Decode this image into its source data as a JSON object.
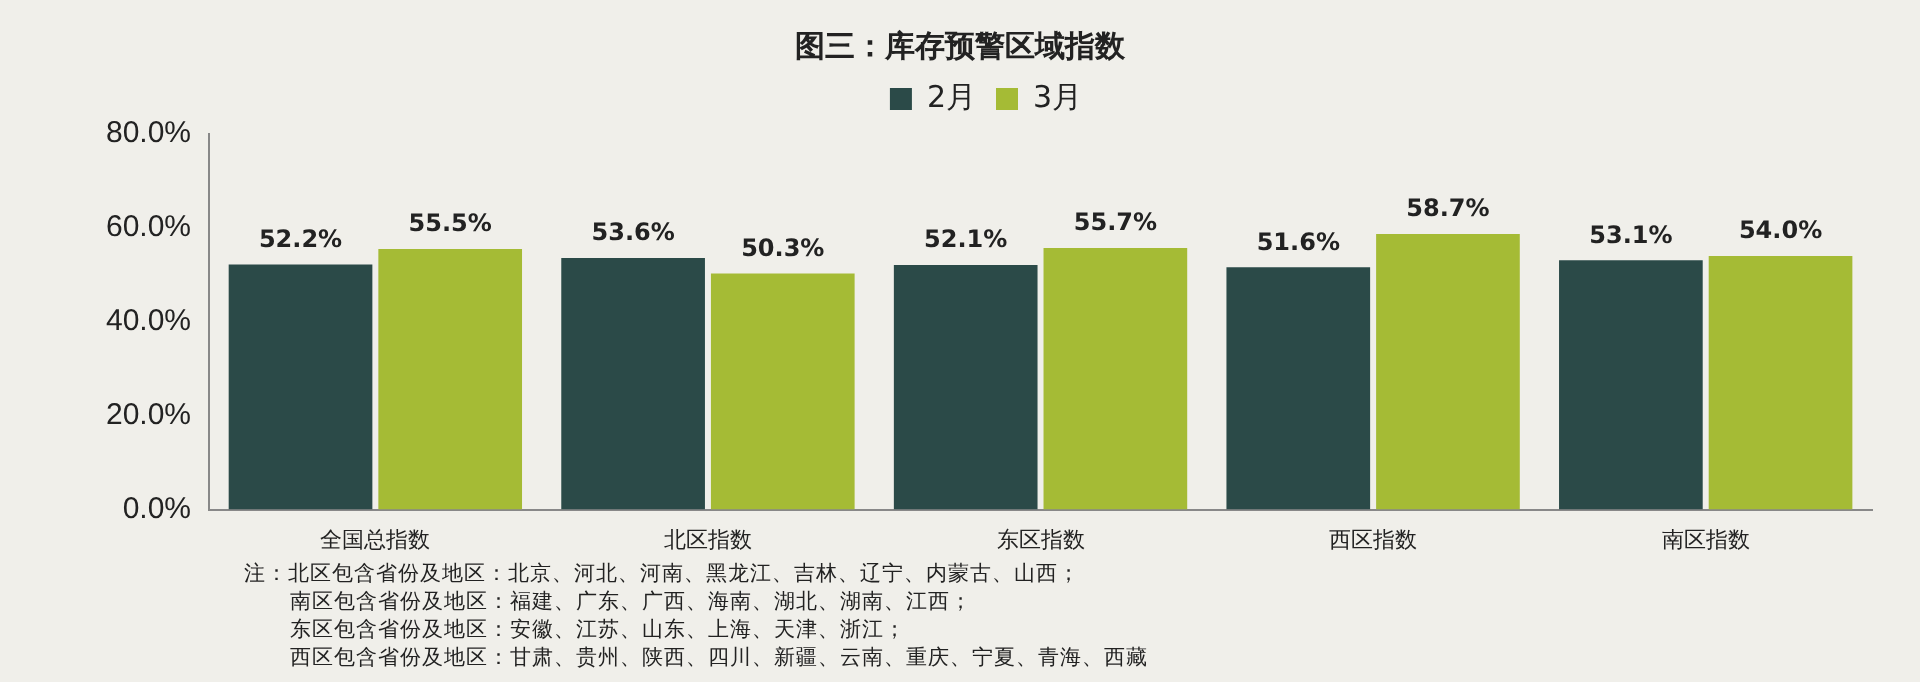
{
  "chart_data": {
    "type": "bar",
    "title": "图三：库存预警区域指数",
    "categories": [
      "全国总指数",
      "北区指数",
      "东区指数",
      "西区指数",
      "南区指数"
    ],
    "series": [
      {
        "name": "2月",
        "color": "#2b4a48",
        "values": [
          52.2,
          53.6,
          52.1,
          51.6,
          53.1
        ],
        "value_labels": [
          "52.2%",
          "53.6%",
          "52.1%",
          "51.6%",
          "53.1%"
        ]
      },
      {
        "name": "3月",
        "color": "#a5bb35",
        "values": [
          55.5,
          50.3,
          55.7,
          58.7,
          54.0
        ],
        "value_labels": [
          "55.5%",
          "50.3%",
          "55.7%",
          "58.7%",
          "54.0%"
        ]
      }
    ],
    "ylim": [
      0,
      80
    ],
    "yticks": [
      {
        "value": 0,
        "label": "0.0%"
      },
      {
        "value": 20,
        "label": "20.0%"
      },
      {
        "value": 40,
        "label": "40.0%"
      },
      {
        "value": 60,
        "label": "60.0%"
      },
      {
        "value": 80,
        "label": "80.0%"
      }
    ],
    "grid": false,
    "legend": "top",
    "annotations": [
      "注：北区包含省份及地区：北京、河北、河南、黑龙江、吉林、辽宁、内蒙古、山西；",
      "南区包含省份及地区：福建、广东、广西、海南、湖北、湖南、江西；",
      "东区包含省份及地区：安徽、江苏、山东、上海、天津、浙江；",
      "西区包含省份及地区：甘肃、贵州、陕西、四川、新疆、云南、重庆、宁夏、青海、西藏"
    ]
  }
}
